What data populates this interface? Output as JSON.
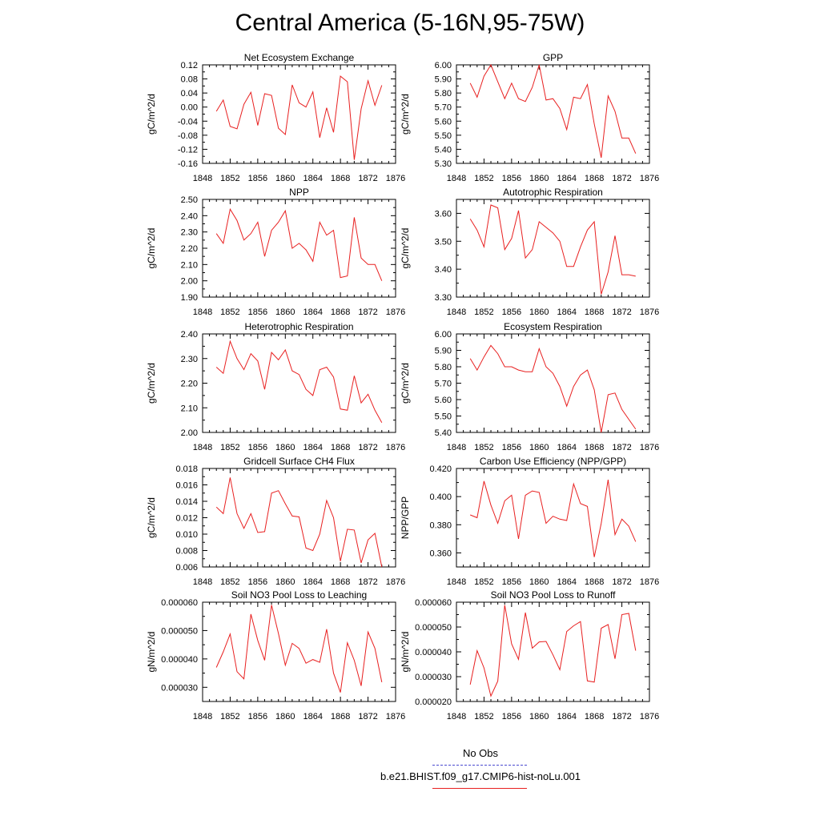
{
  "title": "Central America (5-16N,95-75W)",
  "legend": {
    "obs_label": "No Obs",
    "model_label": "b.e21.BHIST.f09_g17.CMIP6-hist-noLu.001",
    "obs_color": "#4a4ad0",
    "model_color": "#e82020"
  },
  "chart_data": [
    {
      "type": "line",
      "title": "Net Ecosystem Exchange",
      "ylabel": "gC/m^2/d",
      "xlim": [
        1848,
        1876
      ],
      "xticks": [
        1848,
        1852,
        1856,
        1860,
        1864,
        1868,
        1872,
        1876
      ],
      "ylim": [
        -0.16,
        0.12
      ],
      "yticks": [
        "-0.16",
        "-0.12",
        "-0.08",
        "-0.04",
        "0.00",
        "0.04",
        "0.08",
        "0.12"
      ],
      "x": [
        1850,
        1851,
        1852,
        1853,
        1854,
        1855,
        1856,
        1857,
        1858,
        1859,
        1860,
        1861,
        1862,
        1863,
        1864,
        1865,
        1866,
        1867,
        1868,
        1869,
        1870,
        1871,
        1872,
        1873,
        1874
      ],
      "values": [
        -0.012,
        0.02,
        -0.055,
        -0.062,
        0.008,
        0.042,
        -0.052,
        0.038,
        0.033,
        -0.06,
        -0.078,
        0.063,
        0.012,
        0.0,
        0.043,
        -0.087,
        -0.002,
        -0.072,
        0.088,
        0.072,
        -0.15,
        -0.005,
        0.075,
        0.005,
        0.062
      ]
    },
    {
      "type": "line",
      "title": "GPP",
      "ylabel": "gC/m^2/d",
      "xlim": [
        1848,
        1876
      ],
      "xticks": [
        1848,
        1852,
        1856,
        1860,
        1864,
        1868,
        1872,
        1876
      ],
      "ylim": [
        5.3,
        6.0
      ],
      "yticks": [
        "5.30",
        "5.40",
        "5.50",
        "5.60",
        "5.70",
        "5.80",
        "5.90",
        "6.00"
      ],
      "x": [
        1850,
        1851,
        1852,
        1853,
        1854,
        1855,
        1856,
        1857,
        1858,
        1859,
        1860,
        1861,
        1862,
        1863,
        1864,
        1865,
        1866,
        1867,
        1868,
        1869,
        1870,
        1871,
        1872,
        1873,
        1874
      ],
      "values": [
        5.87,
        5.77,
        5.92,
        6.0,
        5.88,
        5.76,
        5.87,
        5.76,
        5.74,
        5.84,
        6.0,
        5.75,
        5.76,
        5.69,
        5.54,
        5.77,
        5.76,
        5.86,
        5.58,
        5.34,
        5.78,
        5.67,
        5.48,
        5.48,
        5.37
      ]
    },
    {
      "type": "line",
      "title": "NPP",
      "ylabel": "gC/m^2/d",
      "xlim": [
        1848,
        1876
      ],
      "xticks": [
        1848,
        1852,
        1856,
        1860,
        1864,
        1868,
        1872,
        1876
      ],
      "ylim": [
        1.9,
        2.5
      ],
      "yticks": [
        "1.90",
        "2.00",
        "2.10",
        "2.20",
        "2.30",
        "2.40",
        "2.50"
      ],
      "x": [
        1850,
        1851,
        1852,
        1853,
        1854,
        1855,
        1856,
        1857,
        1858,
        1859,
        1860,
        1861,
        1862,
        1863,
        1864,
        1865,
        1866,
        1867,
        1868,
        1869,
        1870,
        1871,
        1872,
        1873,
        1874
      ],
      "values": [
        2.29,
        2.23,
        2.44,
        2.37,
        2.25,
        2.29,
        2.36,
        2.15,
        2.31,
        2.36,
        2.43,
        2.2,
        2.23,
        2.19,
        2.12,
        2.36,
        2.28,
        2.31,
        2.02,
        2.03,
        2.39,
        2.14,
        2.1,
        2.1,
        2.0
      ]
    },
    {
      "type": "line",
      "title": "Autotrophic Respiration",
      "ylabel": "gC/m^2/d",
      "xlim": [
        1848,
        1876
      ],
      "xticks": [
        1848,
        1852,
        1856,
        1860,
        1864,
        1868,
        1872,
        1876
      ],
      "ylim": [
        3.3,
        3.65
      ],
      "yticks": [
        "3.30",
        "3.40",
        "3.50",
        "3.60"
      ],
      "x": [
        1850,
        1851,
        1852,
        1853,
        1854,
        1855,
        1856,
        1857,
        1858,
        1859,
        1860,
        1861,
        1862,
        1863,
        1864,
        1865,
        1866,
        1867,
        1868,
        1869,
        1870,
        1871,
        1872,
        1873,
        1874
      ],
      "values": [
        3.58,
        3.54,
        3.48,
        3.63,
        3.62,
        3.47,
        3.51,
        3.61,
        3.44,
        3.47,
        3.57,
        3.55,
        3.53,
        3.5,
        3.41,
        3.41,
        3.48,
        3.54,
        3.57,
        3.31,
        3.39,
        3.52,
        3.38,
        3.38,
        3.375
      ]
    },
    {
      "type": "line",
      "title": "Heterotrophic Respiration",
      "ylabel": "gC/m^2/d",
      "xlim": [
        1848,
        1876
      ],
      "xticks": [
        1848,
        1852,
        1856,
        1860,
        1864,
        1868,
        1872,
        1876
      ],
      "ylim": [
        2.0,
        2.4
      ],
      "yticks": [
        "2.00",
        "2.10",
        "2.20",
        "2.30",
        "2.40"
      ],
      "x": [
        1850,
        1851,
        1852,
        1853,
        1854,
        1855,
        1856,
        1857,
        1858,
        1859,
        1860,
        1861,
        1862,
        1863,
        1864,
        1865,
        1866,
        1867,
        1868,
        1869,
        1870,
        1871,
        1872,
        1873,
        1874
      ],
      "values": [
        2.265,
        2.24,
        2.37,
        2.3,
        2.255,
        2.32,
        2.29,
        2.175,
        2.325,
        2.295,
        2.335,
        2.25,
        2.235,
        2.175,
        2.15,
        2.255,
        2.265,
        2.225,
        2.095,
        2.09,
        2.23,
        2.12,
        2.155,
        2.09,
        2.04
      ]
    },
    {
      "type": "line",
      "title": "Ecosystem Respiration",
      "ylabel": "gC/m^2/d",
      "xlim": [
        1848,
        1876
      ],
      "xticks": [
        1848,
        1852,
        1856,
        1860,
        1864,
        1868,
        1872,
        1876
      ],
      "ylim": [
        5.4,
        6.0
      ],
      "yticks": [
        "5.40",
        "5.50",
        "5.60",
        "5.70",
        "5.80",
        "5.90",
        "6.00"
      ],
      "x": [
        1850,
        1851,
        1852,
        1853,
        1854,
        1855,
        1856,
        1857,
        1858,
        1859,
        1860,
        1861,
        1862,
        1863,
        1864,
        1865,
        1866,
        1867,
        1868,
        1869,
        1870,
        1871,
        1872,
        1873,
        1874
      ],
      "values": [
        5.85,
        5.78,
        5.86,
        5.93,
        5.88,
        5.8,
        5.8,
        5.78,
        5.77,
        5.77,
        5.91,
        5.8,
        5.76,
        5.68,
        5.56,
        5.68,
        5.75,
        5.78,
        5.66,
        5.4,
        5.63,
        5.64,
        5.54,
        5.48,
        5.42
      ]
    },
    {
      "type": "line",
      "title": "Gridcell Surface CH4 Flux",
      "ylabel": "gC/m^2/d",
      "xlim": [
        1848,
        1876
      ],
      "xticks": [
        1848,
        1852,
        1856,
        1860,
        1864,
        1868,
        1872,
        1876
      ],
      "ylim": [
        0.006,
        0.018
      ],
      "yticks": [
        "0.006",
        "0.008",
        "0.010",
        "0.012",
        "0.014",
        "0.016",
        "0.018"
      ],
      "x": [
        1850,
        1851,
        1852,
        1853,
        1854,
        1855,
        1856,
        1857,
        1858,
        1859,
        1860,
        1861,
        1862,
        1863,
        1864,
        1865,
        1866,
        1867,
        1868,
        1869,
        1870,
        1871,
        1872,
        1873,
        1874
      ],
      "values": [
        0.0133,
        0.0125,
        0.0169,
        0.0125,
        0.0107,
        0.0125,
        0.0102,
        0.0103,
        0.015,
        0.0153,
        0.0137,
        0.0122,
        0.0121,
        0.0083,
        0.008,
        0.01,
        0.0141,
        0.012,
        0.0067,
        0.0106,
        0.0105,
        0.0065,
        0.0093,
        0.0101,
        0.006
      ]
    },
    {
      "type": "line",
      "title": "Carbon Use Efficiency (NPP/GPP)",
      "ylabel": "NPP/GPP",
      "xlim": [
        1848,
        1876
      ],
      "xticks": [
        1848,
        1852,
        1856,
        1860,
        1864,
        1868,
        1872,
        1876
      ],
      "ylim": [
        0.35,
        0.42
      ],
      "yticks": [
        "0.360",
        "0.380",
        "0.400",
        "0.420"
      ],
      "x": [
        1850,
        1851,
        1852,
        1853,
        1854,
        1855,
        1856,
        1857,
        1858,
        1859,
        1860,
        1861,
        1862,
        1863,
        1864,
        1865,
        1866,
        1867,
        1868,
        1869,
        1870,
        1871,
        1872,
        1873,
        1874
      ],
      "values": [
        0.387,
        0.385,
        0.411,
        0.394,
        0.381,
        0.397,
        0.401,
        0.37,
        0.401,
        0.404,
        0.403,
        0.381,
        0.386,
        0.384,
        0.383,
        0.409,
        0.395,
        0.393,
        0.357,
        0.381,
        0.412,
        0.373,
        0.384,
        0.379,
        0.368
      ]
    },
    {
      "type": "line",
      "title": "Soil NO3 Pool Loss to Leaching",
      "ylabel": "gN/m^2/d",
      "xlim": [
        1848,
        1876
      ],
      "xticks": [
        1848,
        1852,
        1856,
        1860,
        1864,
        1868,
        1872,
        1876
      ],
      "ylim": [
        2.5e-05,
        6e-05
      ],
      "yticks": [
        "0.000030",
        "0.000040",
        "0.000050",
        "0.000060"
      ],
      "x": [
        1850,
        1851,
        1852,
        1853,
        1854,
        1855,
        1856,
        1857,
        1858,
        1859,
        1860,
        1861,
        1862,
        1863,
        1864,
        1865,
        1866,
        1867,
        1868,
        1869,
        1870,
        1871,
        1872,
        1873,
        1874
      ],
      "values": [
        3.7e-05,
        4.25e-05,
        4.88e-05,
        3.55e-05,
        3.3e-05,
        5.58e-05,
        4.65e-05,
        3.95e-05,
        5.9e-05,
        4.9e-05,
        3.78e-05,
        4.55e-05,
        4.37e-05,
        3.85e-05,
        3.98e-05,
        3.88e-05,
        5.05e-05,
        3.5e-05,
        2.82e-05,
        4.57e-05,
        3.95e-05,
        3.05e-05,
        4.95e-05,
        4.37e-05,
        3.18e-05
      ]
    },
    {
      "type": "line",
      "title": "Soil NO3 Pool Loss to Runoff",
      "ylabel": "gN/m^2/d",
      "xlim": [
        1848,
        1876
      ],
      "xticks": [
        1848,
        1852,
        1856,
        1860,
        1864,
        1868,
        1872,
        1876
      ],
      "ylim": [
        2e-05,
        6e-05
      ],
      "yticks": [
        "0.000020",
        "0.000030",
        "0.000040",
        "0.000050",
        "0.000060"
      ],
      "x": [
        1850,
        1851,
        1852,
        1853,
        1854,
        1855,
        1856,
        1857,
        1858,
        1859,
        1860,
        1861,
        1862,
        1863,
        1864,
        1865,
        1866,
        1867,
        1868,
        1869,
        1870,
        1871,
        1872,
        1873,
        1874
      ],
      "values": [
        2.68e-05,
        4.05e-05,
        3.35e-05,
        2.22e-05,
        2.82e-05,
        5.88e-05,
        4.32e-05,
        3.7e-05,
        5.58e-05,
        4.15e-05,
        4.4e-05,
        4.42e-05,
        3.88e-05,
        3.28e-05,
        4.82e-05,
        5.05e-05,
        5.22e-05,
        2.83e-05,
        2.78e-05,
        4.95e-05,
        5.1e-05,
        3.72e-05,
        5.5e-05,
        5.55e-05,
        4.05e-05
      ]
    }
  ]
}
